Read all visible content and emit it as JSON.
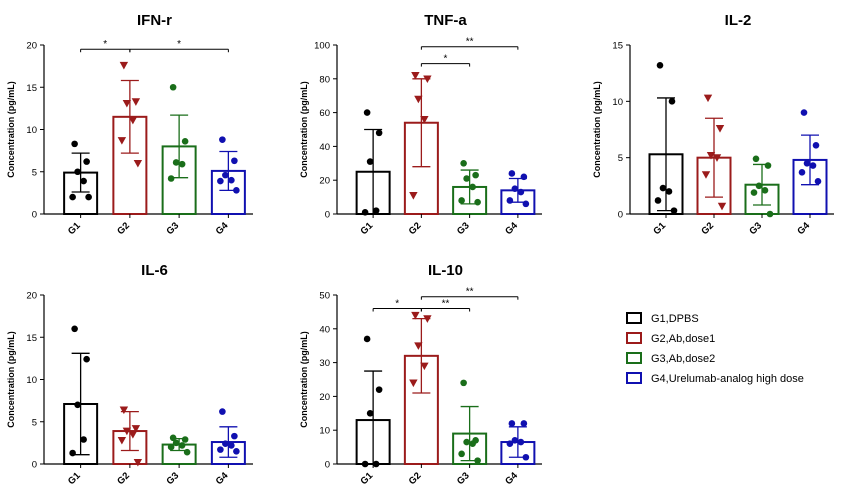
{
  "chart_data": [
    {
      "type": "bar",
      "title": "IFN-r",
      "ylabel": "Concentration (pg/mL)",
      "ylim": [
        0,
        20
      ],
      "yticks": [
        0,
        5,
        10,
        15,
        20
      ],
      "categories": [
        "G1",
        "G2",
        "G3",
        "G4"
      ],
      "values": [
        4.9,
        11.5,
        8.0,
        5.1
      ],
      "sd": [
        2.3,
        4.3,
        3.7,
        2.3
      ],
      "points": [
        [
          8.3,
          6.2,
          5.0,
          3.9,
          2.0,
          2.0
        ],
        [
          17.6,
          13.3,
          13.1,
          11.1,
          8.7,
          6.0
        ],
        [
          15.0,
          8.6,
          6.1,
          5.9,
          4.2
        ],
        [
          8.8,
          6.3,
          4.6,
          4.0,
          3.9,
          2.8
        ]
      ],
      "significance": [
        {
          "from": 0,
          "to": 1,
          "label": "*",
          "y": 19.5
        },
        {
          "from": 1,
          "to": 3,
          "label": "*",
          "y": 19.5
        }
      ]
    },
    {
      "type": "bar",
      "title": "TNF-a",
      "ylabel": "Concentration (pg/mL)",
      "ylim": [
        0,
        100
      ],
      "yticks": [
        0,
        20,
        40,
        60,
        80,
        100
      ],
      "categories": [
        "G1",
        "G2",
        "G3",
        "G4"
      ],
      "values": [
        25,
        54,
        16,
        14
      ],
      "sd": [
        25,
        26,
        10,
        7
      ],
      "points": [
        [
          60,
          48,
          31,
          2,
          1
        ],
        [
          82,
          80,
          68,
          56,
          11
        ],
        [
          30,
          23,
          21,
          16,
          8,
          7
        ],
        [
          24,
          22,
          15,
          13,
          8,
          6
        ]
      ],
      "significance": [
        {
          "from": 1,
          "to": 3,
          "label": "**",
          "y": 99
        },
        {
          "from": 1,
          "to": 2,
          "label": "*",
          "y": 89
        }
      ]
    },
    {
      "type": "bar",
      "title": "IL-2",
      "ylabel": "Concentration (pg/mL)",
      "ylim": [
        0,
        15
      ],
      "yticks": [
        0,
        5,
        10,
        15
      ],
      "categories": [
        "G1",
        "G2",
        "G3",
        "G4"
      ],
      "values": [
        5.3,
        5.0,
        2.6,
        4.8
      ],
      "sd": [
        5.0,
        3.5,
        1.8,
        2.2
      ],
      "points": [
        [
          13.2,
          10.0,
          2.3,
          2.0,
          1.2,
          0.3
        ],
        [
          10.3,
          7.6,
          5.2,
          5.0,
          3.5,
          0.7
        ],
        [
          4.9,
          4.3,
          2.5,
          2.1,
          1.9,
          0.0
        ],
        [
          9.0,
          6.1,
          4.5,
          4.3,
          3.7,
          2.9
        ]
      ],
      "significance": []
    },
    {
      "type": "bar",
      "title": "IL-6",
      "ylabel": "Concentration (pg/mL)",
      "ylim": [
        0,
        20
      ],
      "yticks": [
        0,
        5,
        10,
        15,
        20
      ],
      "categories": [
        "G1",
        "G2",
        "G3",
        "G4"
      ],
      "values": [
        7.1,
        3.9,
        2.3,
        2.6
      ],
      "sd": [
        6.0,
        2.3,
        0.7,
        1.8
      ],
      "points": [
        [
          16.0,
          12.4,
          7.0,
          2.9,
          1.3
        ],
        [
          6.4,
          4.2,
          3.9,
          3.5,
          2.8,
          0.2
        ],
        [
          3.1,
          2.9,
          2.5,
          2.2,
          2.0,
          1.4
        ],
        [
          6.2,
          3.3,
          2.4,
          2.2,
          1.7,
          1.5
        ]
      ],
      "significance": []
    },
    {
      "type": "bar",
      "title": "IL-10",
      "ylabel": "Concentration (pg/mL)",
      "ylim": [
        0,
        50
      ],
      "yticks": [
        0,
        10,
        20,
        30,
        40,
        50
      ],
      "categories": [
        "G1",
        "G2",
        "G3",
        "G4"
      ],
      "values": [
        13,
        32,
        9,
        6.5
      ],
      "sd": [
        14.5,
        11,
        8,
        4.5
      ],
      "points": [
        [
          37,
          22,
          15,
          0,
          0
        ],
        [
          44,
          43,
          35,
          29,
          24
        ],
        [
          24,
          7,
          6.5,
          6,
          3,
          1
        ],
        [
          12,
          12,
          7,
          6.5,
          6,
          2
        ]
      ],
      "significance": [
        {
          "from": 0,
          "to": 1,
          "label": "*",
          "y": 46
        },
        {
          "from": 1,
          "to": 3,
          "label": "**",
          "y": 49.5
        },
        {
          "from": 1,
          "to": 2,
          "label": "**",
          "y": 46
        }
      ]
    }
  ],
  "groups": [
    {
      "label": "G1,DPBS",
      "color": "#000000",
      "marker": "circle"
    },
    {
      "label": "G2,Ab,dose1",
      "color": "#9b1b1b",
      "marker": "triangle-down"
    },
    {
      "label": "G3,Ab,dose2",
      "color": "#1a6e1a",
      "marker": "circle"
    },
    {
      "label": "G4,Urelumab-analog high dose",
      "color": "#1010b0",
      "marker": "circle"
    }
  ]
}
